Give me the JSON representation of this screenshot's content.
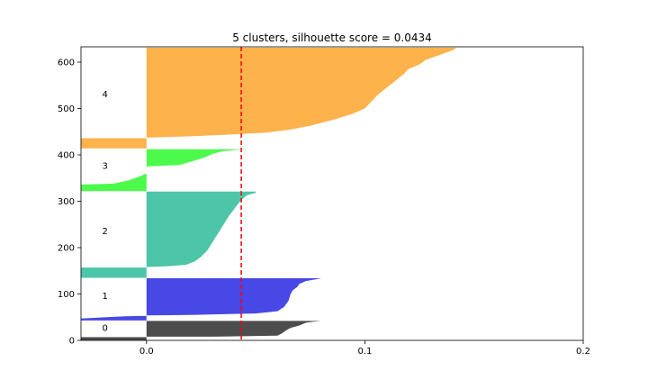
{
  "chart_data": {
    "type": "area",
    "title": "5 clusters, silhouette score = 0.0434",
    "xlabel": "",
    "ylabel": "",
    "xlim": [
      -0.03,
      0.2
    ],
    "ylim": [
      0,
      633
    ],
    "x_ticks": [
      0.0,
      0.1,
      0.2
    ],
    "x_tick_labels": [
      "0.0",
      "0.1",
      "0.2"
    ],
    "y_ticks": [
      0,
      100,
      200,
      300,
      400,
      500,
      600
    ],
    "y_tick_labels": [
      "0",
      "100",
      "200",
      "300",
      "400",
      "500",
      "600"
    ],
    "grid": false,
    "silhouette_score": 0.0434,
    "score_line_color": "#ff0000",
    "series": [
      {
        "name": "0",
        "color": "#4d4d4d",
        "y_range": [
          0,
          43
        ],
        "label_y": 28,
        "points": [
          [
            -0.03,
            0
          ],
          [
            -0.03,
            7
          ],
          [
            0.0,
            7
          ],
          [
            0.0,
            8
          ],
          [
            0.03,
            8
          ],
          [
            0.06,
            10
          ],
          [
            0.062,
            15
          ],
          [
            0.064,
            22
          ],
          [
            0.066,
            27
          ],
          [
            0.07,
            32
          ],
          [
            0.073,
            38
          ],
          [
            0.076,
            40
          ],
          [
            0.08,
            42
          ],
          [
            0.0,
            42
          ],
          [
            0.0,
            43
          ]
        ]
      },
      {
        "name": "1",
        "color": "#4848e6",
        "y_range": [
          43,
          135
        ],
        "label_y": 97,
        "points": [
          [
            -0.03,
            43
          ],
          [
            -0.03,
            47
          ],
          [
            -0.01,
            52
          ],
          [
            0.0,
            53
          ],
          [
            0.0,
            54
          ],
          [
            0.02,
            55
          ],
          [
            0.05,
            58
          ],
          [
            0.06,
            63
          ],
          [
            0.063,
            72
          ],
          [
            0.065,
            85
          ],
          [
            0.066,
            100
          ],
          [
            0.067,
            108
          ],
          [
            0.069,
            115
          ],
          [
            0.07,
            122
          ],
          [
            0.073,
            128
          ],
          [
            0.078,
            132
          ],
          [
            0.08,
            134
          ],
          [
            0.0,
            134
          ],
          [
            0.0,
            135
          ]
        ]
      },
      {
        "name": "2",
        "color": "#4dc5a9",
        "y_range": [
          135,
          322
        ],
        "label_y": 237,
        "points": [
          [
            -0.03,
            135
          ],
          [
            -0.03,
            157
          ],
          [
            0.0,
            157
          ],
          [
            0.0,
            158
          ],
          [
            0.01,
            160
          ],
          [
            0.018,
            163
          ],
          [
            0.022,
            170
          ],
          [
            0.025,
            180
          ],
          [
            0.028,
            195
          ],
          [
            0.03,
            210
          ],
          [
            0.032,
            225
          ],
          [
            0.034,
            240
          ],
          [
            0.036,
            255
          ],
          [
            0.038,
            270
          ],
          [
            0.04,
            282
          ],
          [
            0.042,
            295
          ],
          [
            0.044,
            305
          ],
          [
            0.046,
            313
          ],
          [
            0.05,
            318
          ],
          [
            0.05,
            321
          ],
          [
            0.0,
            321
          ],
          [
            0.0,
            322
          ]
        ]
      },
      {
        "name": "3",
        "color": "#4cfa4c",
        "y_range": [
          322,
          414
        ],
        "label_y": 378,
        "points": [
          [
            -0.03,
            322
          ],
          [
            -0.03,
            336
          ],
          [
            -0.015,
            338
          ],
          [
            -0.008,
            345
          ],
          [
            -0.004,
            352
          ],
          [
            0.0,
            360
          ],
          [
            0.0,
            375
          ],
          [
            0.015,
            378
          ],
          [
            0.02,
            385
          ],
          [
            0.025,
            392
          ],
          [
            0.028,
            397
          ],
          [
            0.03,
            402
          ],
          [
            0.035,
            408
          ],
          [
            0.042,
            411
          ],
          [
            0.047,
            412
          ],
          [
            0.0,
            412
          ],
          [
            0.0,
            414
          ]
        ]
      },
      {
        "name": "4",
        "color": "#feb24c",
        "y_range": [
          414,
          633
        ],
        "label_y": 532,
        "points": [
          [
            -0.03,
            414
          ],
          [
            -0.03,
            436
          ],
          [
            0.0,
            436
          ],
          [
            0.0,
            437
          ],
          [
            0.02,
            440
          ],
          [
            0.04,
            444
          ],
          [
            0.055,
            448
          ],
          [
            0.065,
            454
          ],
          [
            0.075,
            463
          ],
          [
            0.085,
            475
          ],
          [
            0.094,
            488
          ],
          [
            0.1,
            500
          ],
          [
            0.102,
            510
          ],
          [
            0.104,
            520
          ],
          [
            0.106,
            530
          ],
          [
            0.11,
            545
          ],
          [
            0.114,
            560
          ],
          [
            0.118,
            575
          ],
          [
            0.12,
            585
          ],
          [
            0.125,
            595
          ],
          [
            0.128,
            605
          ],
          [
            0.134,
            615
          ],
          [
            0.14,
            625
          ],
          [
            0.142,
            631
          ],
          [
            0.0,
            631
          ],
          [
            0.0,
            633
          ]
        ]
      }
    ]
  }
}
